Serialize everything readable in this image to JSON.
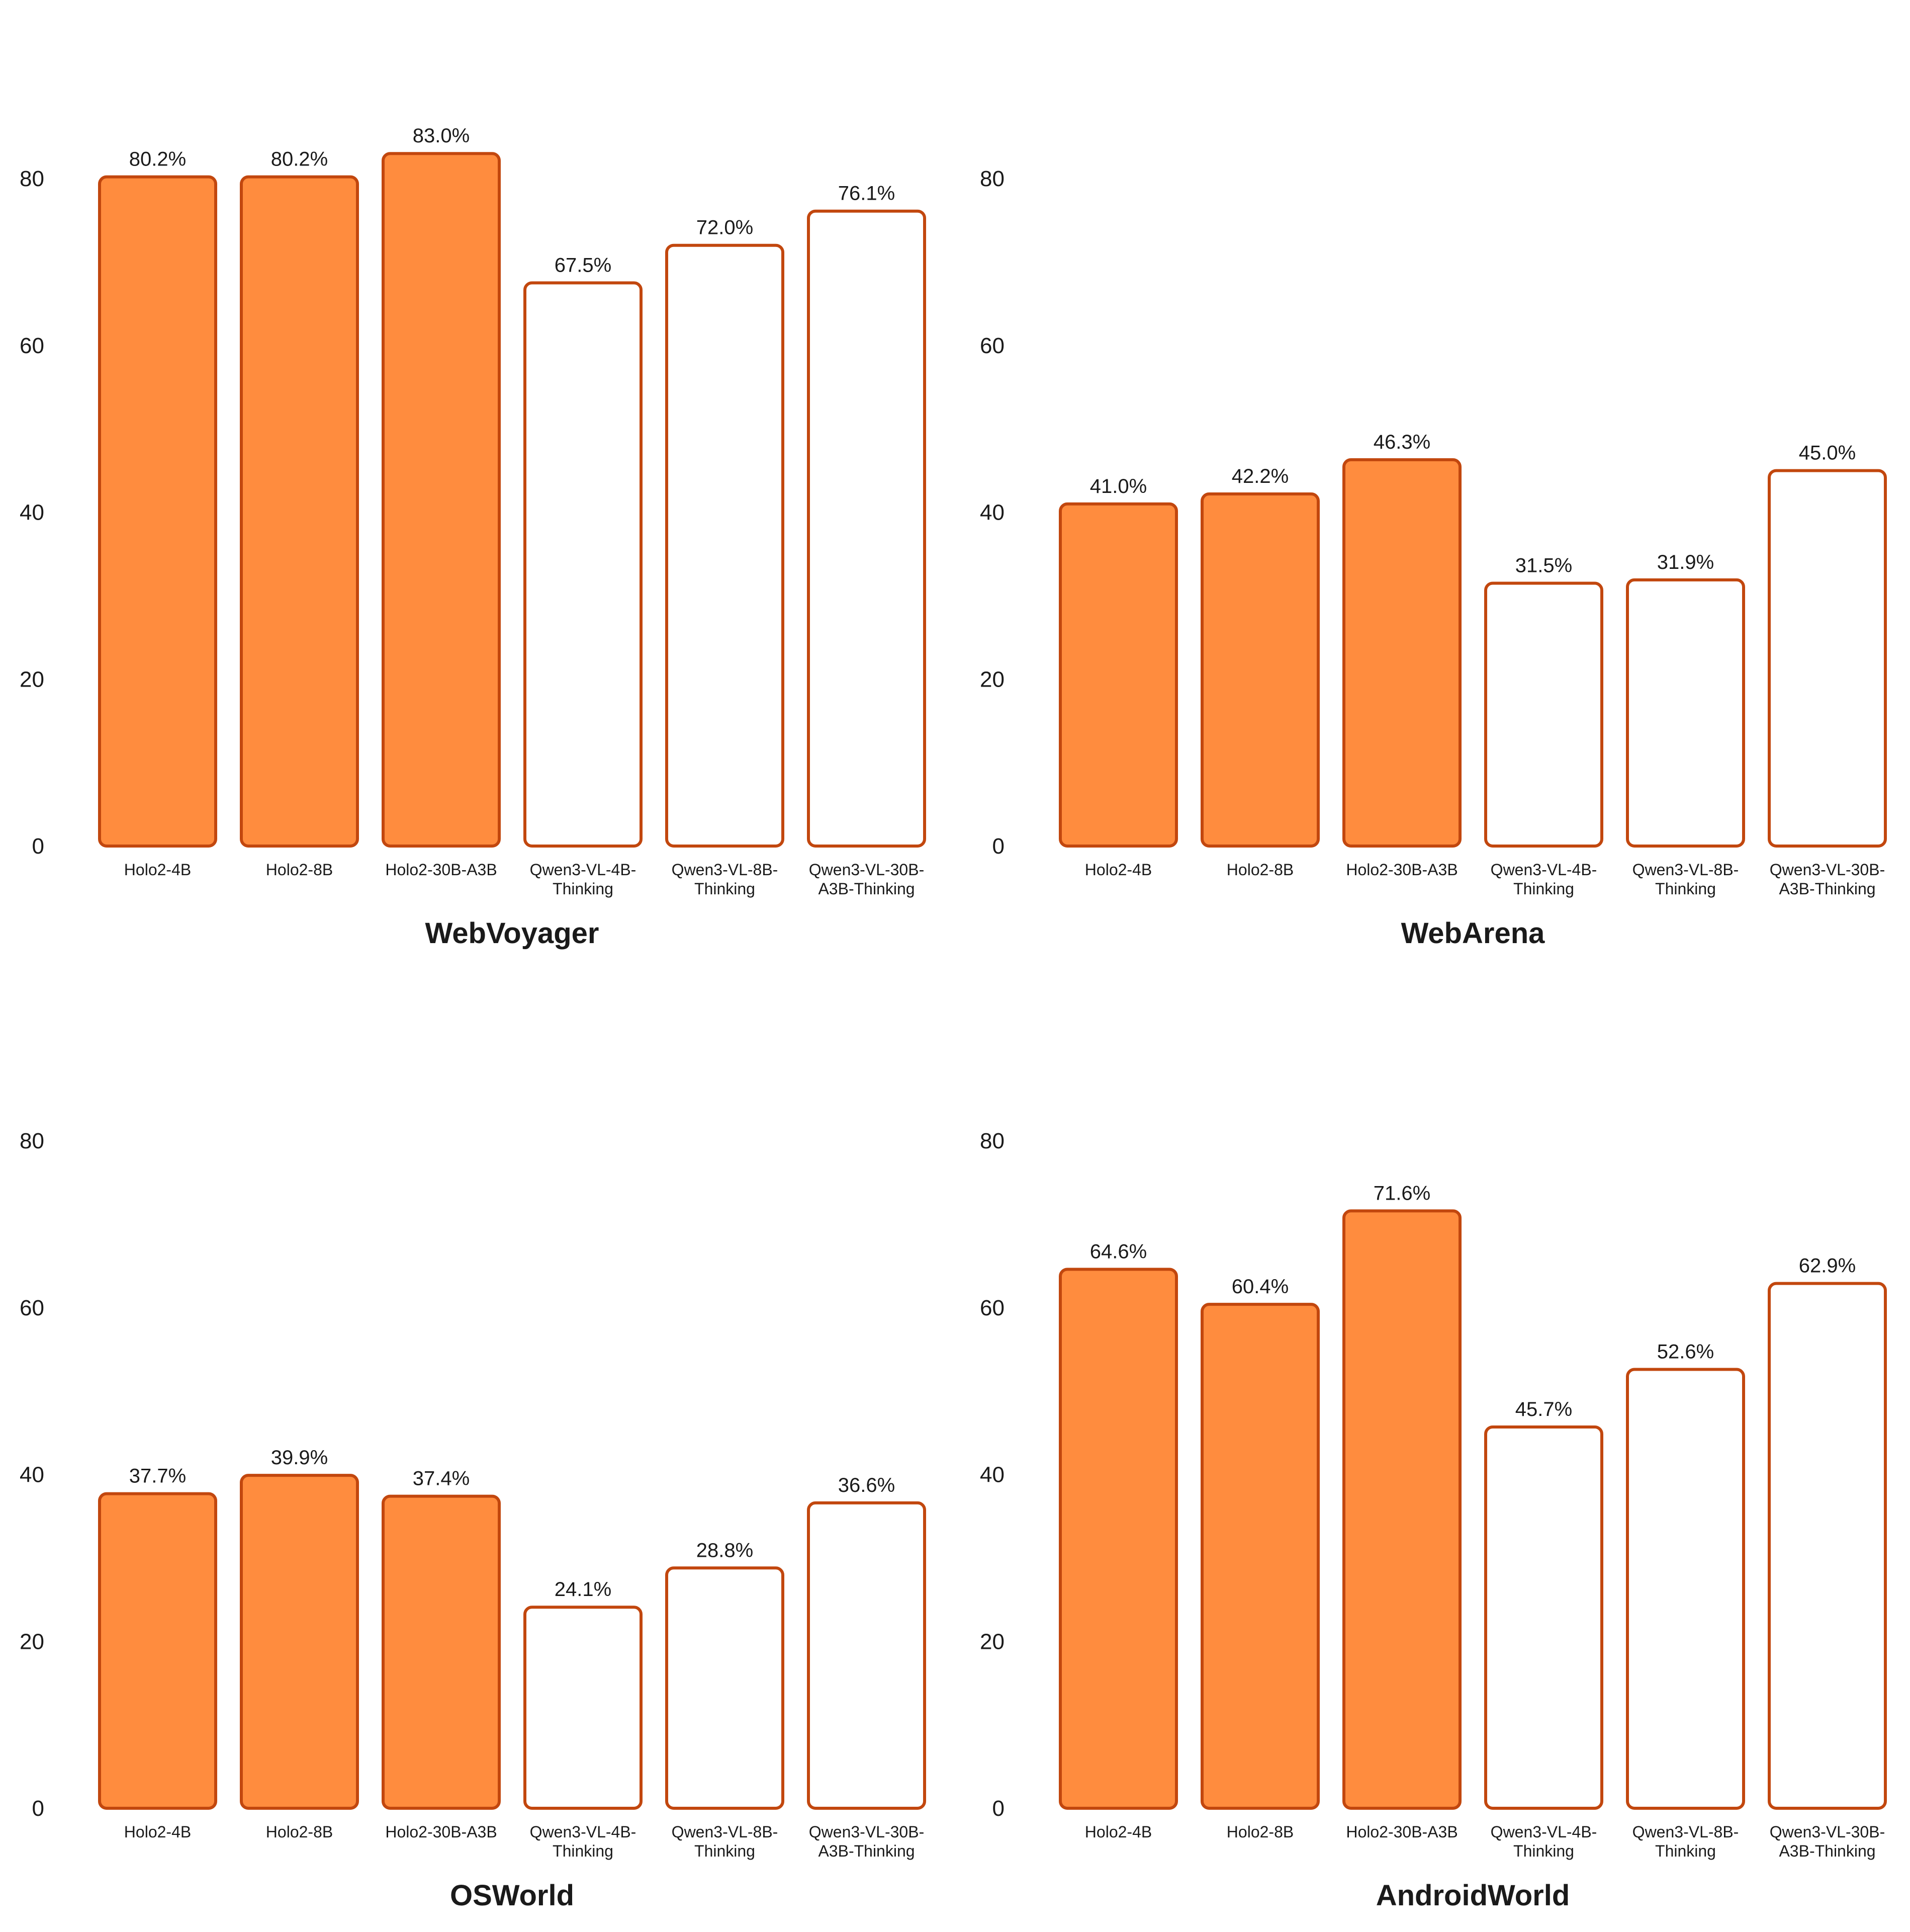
{
  "colors": {
    "holo_fill": "#FF8C3E",
    "bar_stroke": "#C2470E",
    "qwen_fill": "#FFFFFF"
  },
  "value_suffix": "%",
  "chart_data": [
    {
      "type": "bar",
      "title": "WebVoyager",
      "categories": [
        "Holo2-4B",
        "Holo2-8B",
        "Holo2-30B-A3B",
        "Qwen3-VL-4B-Thinking",
        "Qwen3-VL-8B-Thinking",
        "Qwen3-VL-30B-A3B-Thinking"
      ],
      "category_lines": [
        [
          "Holo2-4B"
        ],
        [
          "Holo2-8B"
        ],
        [
          "Holo2-30B-A3B"
        ],
        [
          "Qwen3-VL-4B-",
          "Thinking"
        ],
        [
          "Qwen3-VL-8B-",
          "Thinking"
        ],
        [
          "Qwen3-VL-30B-",
          "A3B-Thinking"
        ]
      ],
      "values": [
        80.2,
        80.2,
        83.0,
        67.5,
        72.0,
        76.1
      ],
      "value_labels": [
        "80.2%",
        "80.2%",
        "83.0%",
        "67.5%",
        "72.0%",
        "76.1%"
      ],
      "filled": [
        true,
        true,
        true,
        false,
        false,
        false
      ],
      "yticks": [
        0,
        20,
        40,
        60,
        80
      ],
      "ylim": [
        0,
        80
      ]
    },
    {
      "type": "bar",
      "title": "WebArena",
      "categories": [
        "Holo2-4B",
        "Holo2-8B",
        "Holo2-30B-A3B",
        "Qwen3-VL-4B-Thinking",
        "Qwen3-VL-8B-Thinking",
        "Qwen3-VL-30B-A3B-Thinking"
      ],
      "category_lines": [
        [
          "Holo2-4B"
        ],
        [
          "Holo2-8B"
        ],
        [
          "Holo2-30B-A3B"
        ],
        [
          "Qwen3-VL-4B-",
          "Thinking"
        ],
        [
          "Qwen3-VL-8B-",
          "Thinking"
        ],
        [
          "Qwen3-VL-30B-",
          "A3B-Thinking"
        ]
      ],
      "values": [
        41.0,
        42.2,
        46.3,
        31.5,
        31.9,
        45.0
      ],
      "value_labels": [
        "41.0%",
        "42.2%",
        "46.3%",
        "31.5%",
        "31.9%",
        "45.0%"
      ],
      "filled": [
        true,
        true,
        true,
        false,
        false,
        false
      ],
      "yticks": [
        0,
        20,
        40,
        60,
        80
      ],
      "ylim": [
        0,
        80
      ]
    },
    {
      "type": "bar",
      "title": "OSWorld",
      "categories": [
        "Holo2-4B",
        "Holo2-8B",
        "Holo2-30B-A3B",
        "Qwen3-VL-4B-Thinking",
        "Qwen3-VL-8B-Thinking",
        "Qwen3-VL-30B-A3B-Thinking"
      ],
      "category_lines": [
        [
          "Holo2-4B"
        ],
        [
          "Holo2-8B"
        ],
        [
          "Holo2-30B-A3B"
        ],
        [
          "Qwen3-VL-4B-",
          "Thinking"
        ],
        [
          "Qwen3-VL-8B-",
          "Thinking"
        ],
        [
          "Qwen3-VL-30B-",
          "A3B-Thinking"
        ]
      ],
      "values": [
        37.7,
        39.9,
        37.4,
        24.1,
        28.8,
        36.6
      ],
      "value_labels": [
        "37.7%",
        "39.9%",
        "37.4%",
        "24.1%",
        "28.8%",
        "36.6%"
      ],
      "filled": [
        true,
        true,
        true,
        false,
        false,
        false
      ],
      "yticks": [
        0,
        20,
        40,
        60,
        80
      ],
      "ylim": [
        0,
        80
      ]
    },
    {
      "type": "bar",
      "title": "AndroidWorld",
      "categories": [
        "Holo2-4B",
        "Holo2-8B",
        "Holo2-30B-A3B",
        "Qwen3-VL-4B-Thinking",
        "Qwen3-VL-8B-Thinking",
        "Qwen3-VL-30B-A3B-Thinking"
      ],
      "category_lines": [
        [
          "Holo2-4B"
        ],
        [
          "Holo2-8B"
        ],
        [
          "Holo2-30B-A3B"
        ],
        [
          "Qwen3-VL-4B-",
          "Thinking"
        ],
        [
          "Qwen3-VL-8B-",
          "Thinking"
        ],
        [
          "Qwen3-VL-30B-",
          "A3B-Thinking"
        ]
      ],
      "values": [
        64.6,
        60.4,
        71.6,
        45.7,
        52.6,
        62.9
      ],
      "value_labels": [
        "64.6%",
        "60.4%",
        "71.6%",
        "45.7%",
        "52.6%",
        "62.9%"
      ],
      "filled": [
        true,
        true,
        true,
        false,
        false,
        false
      ],
      "yticks": [
        0,
        20,
        40,
        60,
        80
      ],
      "ylim": [
        0,
        80
      ]
    }
  ]
}
